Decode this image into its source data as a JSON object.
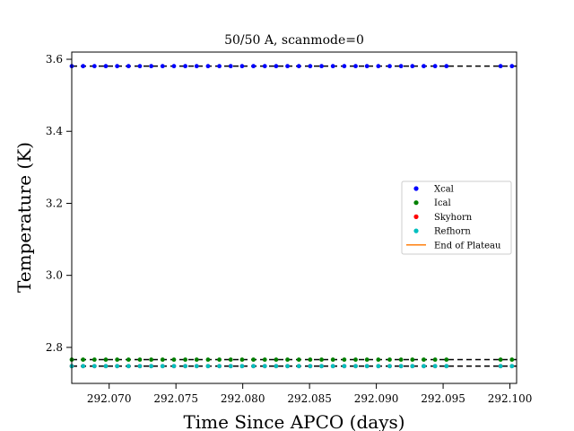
{
  "chart_data": {
    "type": "scatter",
    "title": "50/50 A, scanmode=0",
    "xlabel": "Time Since APCO (days)",
    "ylabel": "Temperature (K)",
    "xlim": [
      292.0672,
      292.1005
    ],
    "ylim": [
      2.7,
      3.62
    ],
    "xticks": [
      292.07,
      292.075,
      292.08,
      292.085,
      292.09,
      292.095,
      292.1
    ],
    "xtick_labels": [
      "292.070",
      "292.075",
      "292.080",
      "292.085",
      "292.090",
      "292.095",
      "292.100"
    ],
    "yticks": [
      2.8,
      3.0,
      3.2,
      3.4,
      3.6
    ],
    "ytick_labels": [
      "2.8",
      "3.0",
      "3.2",
      "3.4",
      "3.6"
    ],
    "grid": false,
    "legend_position": "center-right",
    "series": [
      {
        "name": "Xcal",
        "color": "#0000ff",
        "marker": "dot",
        "y_level": 3.581
      },
      {
        "name": "Ical",
        "color": "#008000",
        "marker": "dot",
        "y_level": 2.766
      },
      {
        "name": "Skyhorn",
        "color": "#ff0000",
        "marker": "dot",
        "y_level": 2.748
      },
      {
        "name": "Refhorn",
        "color": "#00bfbf",
        "marker": "dot",
        "y_level": 2.748
      },
      {
        "name": "End of Plateau",
        "color": "#ff7f0e",
        "marker": "line"
      }
    ],
    "point_segments": [
      [
        292.0672,
        292.096
      ],
      [
        292.0993,
        292.1005
      ]
    ],
    "point_spacing": 0.00085,
    "dashed_reference_lines": [
      {
        "y": 3.581,
        "color": "#000000",
        "style": "dashed"
      },
      {
        "y": 2.766,
        "color": "#000000",
        "style": "dashed"
      },
      {
        "y": 2.748,
        "color": "#000000",
        "style": "dashed"
      }
    ]
  }
}
